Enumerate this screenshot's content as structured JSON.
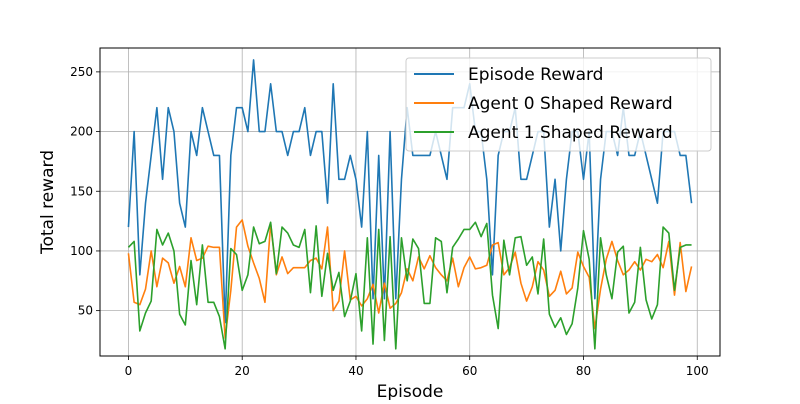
{
  "chart_data": {
    "type": "line",
    "xlabel": "Episode",
    "ylabel": "Total reward",
    "xlim": [
      -5,
      104
    ],
    "ylim": [
      12,
      270
    ],
    "xticks": [
      0,
      20,
      40,
      60,
      80,
      100
    ],
    "yticks": [
      50,
      100,
      150,
      200,
      250
    ],
    "grid": true,
    "legend_position": "top-right",
    "x": [
      0,
      1,
      2,
      3,
      4,
      5,
      6,
      7,
      8,
      9,
      10,
      11,
      12,
      13,
      14,
      15,
      16,
      17,
      18,
      19,
      20,
      21,
      22,
      23,
      24,
      25,
      26,
      27,
      28,
      29,
      30,
      31,
      32,
      33,
      34,
      35,
      36,
      37,
      38,
      39,
      40,
      41,
      42,
      43,
      44,
      45,
      46,
      47,
      48,
      49,
      50,
      51,
      52,
      53,
      54,
      55,
      56,
      57,
      58,
      59,
      60,
      61,
      62,
      63,
      64,
      65,
      66,
      67,
      68,
      69,
      70,
      71,
      72,
      73,
      74,
      75,
      76,
      77,
      78,
      79,
      80,
      81,
      82,
      83,
      84,
      85,
      86,
      87,
      88,
      89,
      90,
      91,
      92,
      93,
      94,
      95,
      96,
      97,
      98,
      99
    ],
    "series": [
      {
        "name": "Episode Reward",
        "color": "#1f77b4",
        "values": [
          120,
          200,
          80,
          140,
          180,
          220,
          160,
          220,
          200,
          140,
          120,
          200,
          180,
          220,
          200,
          180,
          180,
          40,
          180,
          220,
          220,
          200,
          260,
          200,
          200,
          240,
          200,
          200,
          180,
          200,
          200,
          220,
          180,
          200,
          200,
          140,
          240,
          160,
          160,
          180,
          160,
          120,
          200,
          60,
          180,
          60,
          200,
          60,
          160,
          220,
          180,
          180,
          180,
          180,
          200,
          180,
          160,
          220,
          220,
          220,
          240,
          200,
          200,
          160,
          80,
          180,
          200,
          200,
          220,
          160,
          160,
          180,
          200,
          200,
          120,
          160,
          100,
          160,
          200,
          200,
          160,
          200,
          60,
          160,
          200,
          200,
          180,
          220,
          180,
          180,
          200,
          180,
          160,
          140,
          200,
          200,
          200,
          180,
          180,
          140
        ]
      },
      {
        "name": "Agent 0 Shaped Reward",
        "color": "#ff7f0e",
        "values": [
          98,
          57,
          55,
          68,
          100,
          70,
          94,
          90,
          73,
          87,
          70,
          111,
          92,
          94,
          104,
          103,
          103,
          27,
          67,
          120,
          126,
          104,
          90,
          77,
          57,
          123,
          80,
          95,
          81,
          86,
          86,
          86,
          92,
          94,
          85,
          120,
          50,
          58,
          100,
          59,
          62,
          54,
          60,
          72,
          48,
          73,
          52,
          56,
          65,
          85,
          75,
          95,
          85,
          96,
          86,
          80,
          75,
          94,
          70,
          86,
          95,
          85,
          86,
          88,
          105,
          107,
          80,
          86,
          99,
          73,
          58,
          70,
          91,
          84,
          62,
          67,
          83,
          64,
          69,
          99,
          87,
          78,
          35,
          68,
          93,
          108,
          92,
          80,
          84,
          91,
          84,
          93,
          91,
          97,
          86,
          108,
          63,
          107,
          66,
          87
        ]
      },
      {
        "name": "Agent 1 Shaped Reward",
        "color": "#2ca02c",
        "values": [
          103,
          108,
          33,
          48,
          58,
          118,
          105,
          115,
          100,
          47,
          38,
          92,
          55,
          105,
          57,
          57,
          45,
          18,
          102,
          97,
          67,
          80,
          120,
          106,
          108,
          124,
          81,
          120,
          115,
          105,
          103,
          118,
          65,
          121,
          62,
          98,
          67,
          82,
          45,
          58,
          81,
          33,
          111,
          22,
          118,
          25,
          112,
          18,
          111,
          75,
          110,
          102,
          56,
          56,
          111,
          108,
          65,
          103,
          110,
          118,
          118,
          124,
          112,
          123,
          63,
          35,
          109,
          80,
          111,
          112,
          88,
          95,
          64,
          110,
          47,
          36,
          44,
          30,
          39,
          69,
          117,
          93,
          18,
          111,
          80,
          60,
          99,
          104,
          48,
          57,
          103,
          59,
          43,
          55,
          120,
          115,
          67,
          103,
          105,
          105
        ]
      }
    ]
  }
}
